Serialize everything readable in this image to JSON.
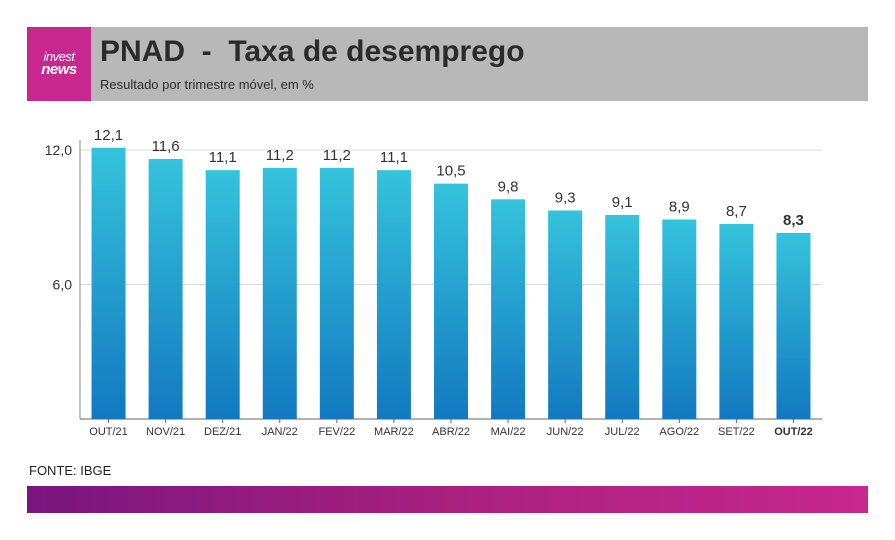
{
  "header": {
    "logo_line1": "invest",
    "logo_line2": "news",
    "title": "PNAD  -  Taxa de desemprego",
    "subtitle": "Resultado por trimestre móvel, em %"
  },
  "source": "FONTE: IBGE",
  "colors": {
    "header_bg": "#b8b8b8",
    "brand_magenta": "#c8278e",
    "brand_purple": "#7a1580",
    "bar_top": "#35c3dc",
    "bar_bottom": "#1279c0"
  },
  "chart_data": {
    "type": "bar",
    "categories": [
      "OUT/21",
      "NOV/21",
      "DEZ/21",
      "JAN/22",
      "FEV/22",
      "MAR/22",
      "ABR/22",
      "MAI/22",
      "JUN/22",
      "JUL/22",
      "AGO/22",
      "SET/22",
      "OUT/22"
    ],
    "values": [
      12.1,
      11.6,
      11.1,
      11.2,
      11.2,
      11.1,
      10.5,
      9.8,
      9.3,
      9.1,
      8.9,
      8.7,
      8.3
    ],
    "value_labels": [
      "12,1",
      "11,6",
      "11,1",
      "11,2",
      "11,2",
      "11,1",
      "10,5",
      "9,8",
      "9,3",
      "9,1",
      "8,9",
      "8,7",
      "8,3"
    ],
    "highlight_last": true,
    "yticks": [
      6.0,
      12.0
    ],
    "ytick_labels": [
      "6,0",
      "12,0"
    ],
    "ylim": [
      0,
      12.0
    ],
    "grid": true,
    "xlabel": "",
    "ylabel": ""
  }
}
